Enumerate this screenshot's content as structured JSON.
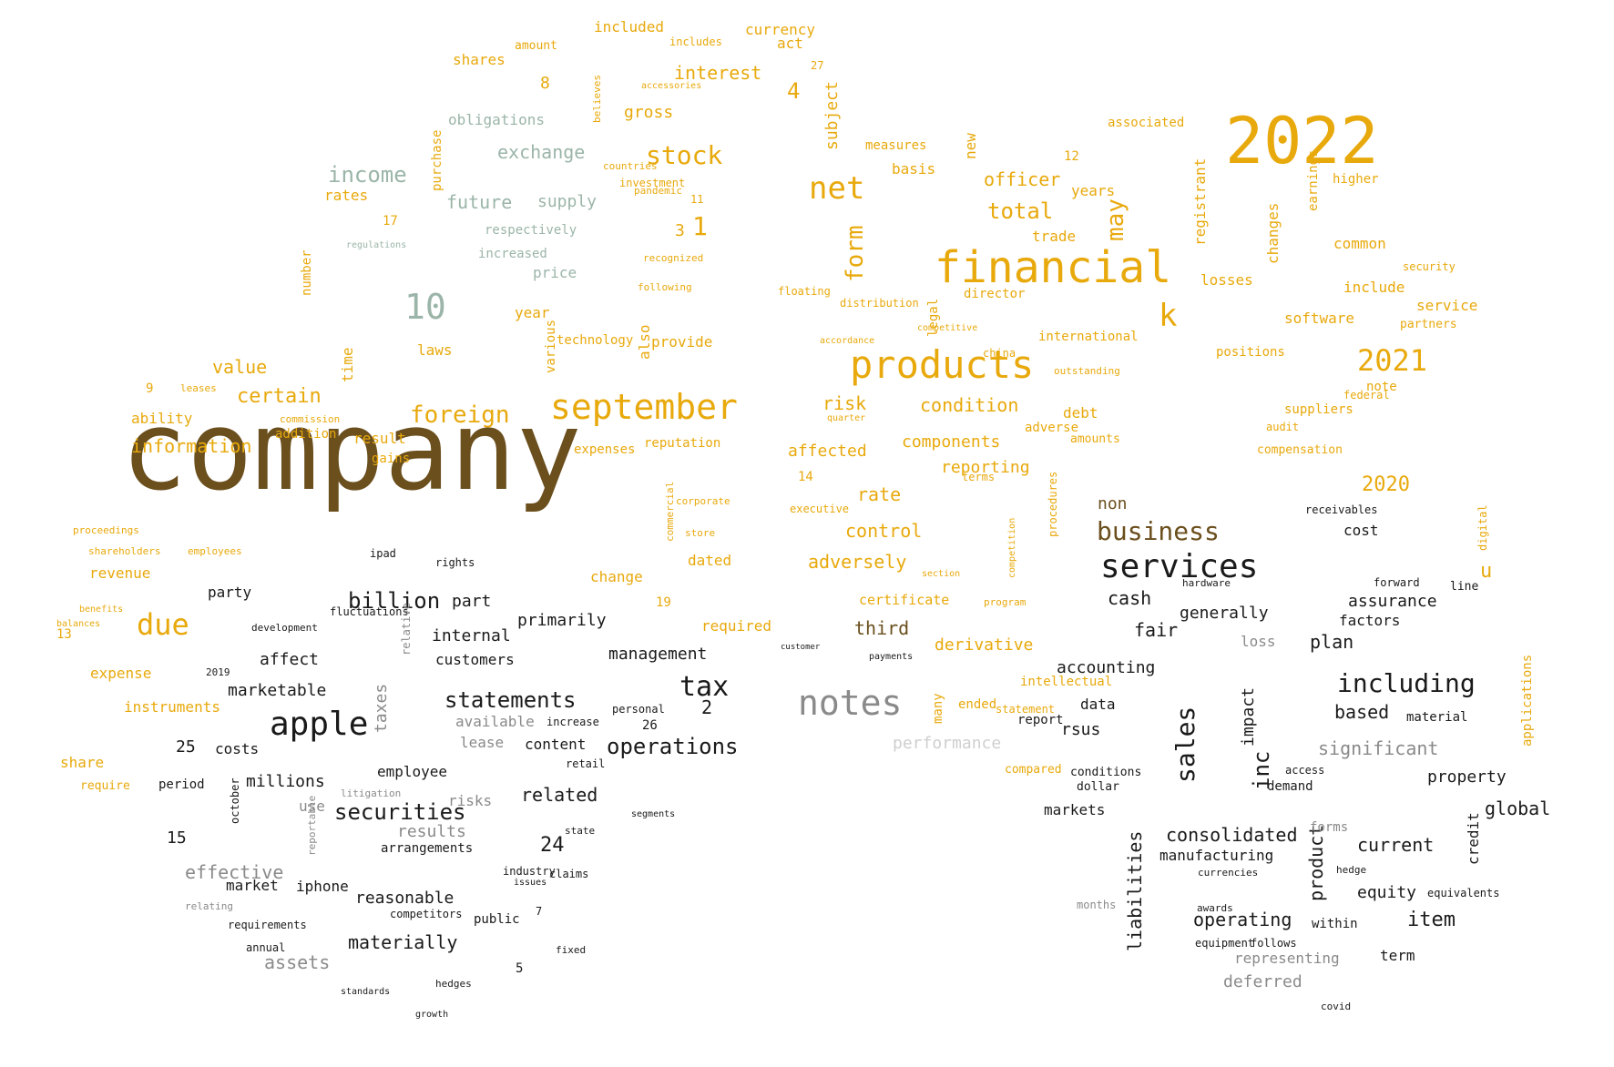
{
  "palette": {
    "brown": "#6b4f1d",
    "dark": "#1a1a1a",
    "gold": "#e8a90c",
    "sage": "#9bb5a8",
    "gray": "#8a8a8a",
    "lightgray": "#cfcfcf"
  },
  "words": [
    {
      "text": "company",
      "c": "brown"
    },
    {
      "text": "2022",
      "c": "gold"
    },
    {
      "text": "financial",
      "c": "gold"
    },
    {
      "text": "products",
      "c": "gold"
    },
    {
      "text": "september",
      "c": "gold"
    },
    {
      "text": "services",
      "c": "dark"
    },
    {
      "text": "notes",
      "c": "gray"
    },
    {
      "text": "apple",
      "c": "dark"
    },
    {
      "text": "net",
      "c": "gold"
    },
    {
      "text": "stock",
      "c": "gold"
    },
    {
      "text": "10",
      "c": "sage"
    },
    {
      "text": "2021",
      "c": "gold"
    },
    {
      "text": "business",
      "c": "brown"
    },
    {
      "text": "due",
      "c": "gold"
    },
    {
      "text": "income",
      "c": "sage"
    },
    {
      "text": "foreign",
      "c": "gold"
    },
    {
      "text": "sales",
      "c": "dark"
    },
    {
      "text": "tax",
      "c": "dark"
    },
    {
      "text": "including",
      "c": "dark"
    },
    {
      "text": "k",
      "c": "gold"
    },
    {
      "text": "form",
      "c": "gold"
    },
    {
      "text": "may",
      "c": "gold"
    },
    {
      "text": "total",
      "c": "gold"
    },
    {
      "text": "officer",
      "c": "gold"
    },
    {
      "text": "statements",
      "c": "dark"
    },
    {
      "text": "operations",
      "c": "dark"
    },
    {
      "text": "securities",
      "c": "dark"
    },
    {
      "text": "billion",
      "c": "dark"
    },
    {
      "text": "exchange",
      "c": "sage"
    },
    {
      "text": "interest",
      "c": "gold"
    },
    {
      "text": "future",
      "c": "sage"
    },
    {
      "text": "certain",
      "c": "gold"
    },
    {
      "text": "information",
      "c": "gold"
    },
    {
      "text": "value",
      "c": "gold"
    },
    {
      "text": "risk",
      "c": "gold"
    },
    {
      "text": "condition",
      "c": "gold"
    },
    {
      "text": "components",
      "c": "gold"
    },
    {
      "text": "rate",
      "c": "gold"
    },
    {
      "text": "control",
      "c": "gold"
    },
    {
      "text": "adversely",
      "c": "gold"
    },
    {
      "text": "affected",
      "c": "gold"
    },
    {
      "text": "reporting",
      "c": "gold"
    },
    {
      "text": "2020",
      "c": "gold"
    },
    {
      "text": "inc",
      "c": "dark"
    },
    {
      "text": "cash",
      "c": "dark"
    },
    {
      "text": "consolidated",
      "c": "dark"
    },
    {
      "text": "operating",
      "c": "dark"
    },
    {
      "text": "item",
      "c": "dark"
    },
    {
      "text": "current",
      "c": "dark"
    },
    {
      "text": "significant",
      "c": "gray"
    },
    {
      "text": "performance",
      "c": "lightgray"
    },
    {
      "text": "derivative",
      "c": "gold"
    },
    {
      "text": "third",
      "c": "brown"
    },
    {
      "text": "accounting",
      "c": "dark"
    },
    {
      "text": "manufacturing",
      "c": "dark"
    },
    {
      "text": "liabilities",
      "c": "dark"
    },
    {
      "text": "product",
      "c": "dark"
    },
    {
      "text": "global",
      "c": "dark"
    },
    {
      "text": "property",
      "c": "dark"
    },
    {
      "text": "materially",
      "c": "dark"
    },
    {
      "text": "assets",
      "c": "gray"
    },
    {
      "text": "effective",
      "c": "gray"
    },
    {
      "text": "reasonable",
      "c": "dark"
    },
    {
      "text": "management",
      "c": "dark"
    },
    {
      "text": "customers",
      "c": "dark"
    },
    {
      "text": "internal",
      "c": "dark"
    },
    {
      "text": "primarily",
      "c": "dark"
    },
    {
      "text": "marketable",
      "c": "dark"
    },
    {
      "text": "millions",
      "c": "dark"
    },
    {
      "text": "related",
      "c": "dark"
    },
    {
      "text": "risks",
      "c": "gray"
    },
    {
      "text": "results",
      "c": "gray"
    },
    {
      "text": "content",
      "c": "dark"
    },
    {
      "text": "employee",
      "c": "dark"
    },
    {
      "text": "24",
      "c": "dark"
    },
    {
      "text": "market",
      "c": "dark"
    },
    {
      "text": "iphone",
      "c": "dark"
    },
    {
      "text": "rsus",
      "c": "dark"
    },
    {
      "text": "data",
      "c": "dark"
    },
    {
      "text": "based",
      "c": "dark"
    },
    {
      "text": "plan",
      "c": "dark"
    },
    {
      "text": "fair",
      "c": "dark"
    },
    {
      "text": "generally",
      "c": "dark"
    },
    {
      "text": "assurance",
      "c": "dark"
    },
    {
      "text": "cost",
      "c": "dark"
    },
    {
      "text": "equity",
      "c": "dark"
    },
    {
      "text": "term",
      "c": "dark"
    },
    {
      "text": "deferred",
      "c": "gray"
    },
    {
      "text": "representing",
      "c": "gray"
    },
    {
      "text": "impact",
      "c": "dark"
    },
    {
      "text": "credit",
      "c": "dark"
    },
    {
      "text": "taxes",
      "c": "gray"
    },
    {
      "text": "supply",
      "c": "sage"
    },
    {
      "text": "obligations",
      "c": "sage"
    },
    {
      "text": "gross",
      "c": "gold"
    },
    {
      "text": "shares",
      "c": "gold"
    },
    {
      "text": "included",
      "c": "gold"
    },
    {
      "text": "currency",
      "c": "gold"
    },
    {
      "text": "subject",
      "c": "gold"
    },
    {
      "text": "basis",
      "c": "gold"
    },
    {
      "text": "years",
      "c": "gold"
    },
    {
      "text": "trade",
      "c": "gold"
    },
    {
      "text": "losses",
      "c": "gold"
    },
    {
      "text": "include",
      "c": "gold"
    },
    {
      "text": "service",
      "c": "gold"
    },
    {
      "text": "software",
      "c": "gold"
    },
    {
      "text": "common",
      "c": "gold"
    },
    {
      "text": "registrant",
      "c": "gold"
    },
    {
      "text": "changes",
      "c": "gold"
    },
    {
      "text": "director",
      "c": "gold"
    },
    {
      "text": "laws",
      "c": "gold"
    },
    {
      "text": "provide",
      "c": "gold"
    },
    {
      "text": "also",
      "c": "gold"
    },
    {
      "text": "time",
      "c": "gold"
    },
    {
      "text": "rates",
      "c": "gold"
    },
    {
      "text": "price",
      "c": "sage"
    },
    {
      "text": "year",
      "c": "gold"
    },
    {
      "text": "increased",
      "c": "sage"
    },
    {
      "text": "respectively",
      "c": "sage"
    },
    {
      "text": "result",
      "c": "gold"
    },
    {
      "text": "ability",
      "c": "gold"
    },
    {
      "text": "revenue",
      "c": "gold"
    },
    {
      "text": "expense",
      "c": "gold"
    },
    {
      "text": "instruments",
      "c": "gold"
    },
    {
      "text": "share",
      "c": "gold"
    },
    {
      "text": "change",
      "c": "gold"
    },
    {
      "text": "dated",
      "c": "gold"
    },
    {
      "text": "required",
      "c": "gold"
    },
    {
      "text": "certificate",
      "c": "gold"
    },
    {
      "text": "debt",
      "c": "gold"
    },
    {
      "text": "suppliers",
      "c": "gold"
    },
    {
      "text": "intellectual",
      "c": "gold"
    },
    {
      "text": "non",
      "c": "brown"
    },
    {
      "text": "many",
      "c": "gold"
    },
    {
      "text": "affect",
      "c": "dark"
    },
    {
      "text": "part",
      "c": "dark"
    },
    {
      "text": "party",
      "c": "dark"
    },
    {
      "text": "costs",
      "c": "dark"
    },
    {
      "text": "25",
      "c": "dark"
    },
    {
      "text": "2",
      "c": "dark"
    },
    {
      "text": "26",
      "c": "dark"
    },
    {
      "text": "15",
      "c": "dark"
    },
    {
      "text": "loss",
      "c": "gray"
    },
    {
      "text": "factors",
      "c": "dark"
    },
    {
      "text": "markets",
      "c": "dark"
    },
    {
      "text": "u",
      "c": "gold"
    },
    {
      "text": "1",
      "c": "gold"
    },
    {
      "text": "3",
      "c": "gold"
    },
    {
      "text": "4",
      "c": "gold"
    },
    {
      "text": "8",
      "c": "gold"
    },
    {
      "text": "new",
      "c": "gold"
    },
    {
      "text": "legal",
      "c": "gold"
    },
    {
      "text": "addition",
      "c": "gold"
    },
    {
      "text": "expenses",
      "c": "gold"
    },
    {
      "text": "reputation",
      "c": "gold"
    },
    {
      "text": "technology",
      "c": "gold"
    },
    {
      "text": "gains",
      "c": "gold"
    },
    {
      "text": "12",
      "c": "gold"
    },
    {
      "text": "14",
      "c": "gold"
    },
    {
      "text": "19",
      "c": "gold"
    },
    {
      "text": "9",
      "c": "gold"
    },
    {
      "text": "13",
      "c": "gold"
    },
    {
      "text": "purchase",
      "c": "gold"
    },
    {
      "text": "number",
      "c": "gold"
    },
    {
      "text": "international",
      "c": "gold"
    },
    {
      "text": "earnings",
      "c": "gold"
    },
    {
      "text": "higher",
      "c": "gold"
    },
    {
      "text": "partners",
      "c": "gold"
    },
    {
      "text": "positions",
      "c": "gold"
    },
    {
      "text": "compensation",
      "c": "gold"
    },
    {
      "text": "note",
      "c": "gold"
    },
    {
      "text": "associated",
      "c": "gold"
    },
    {
      "text": "measures",
      "c": "gold"
    },
    {
      "text": "act",
      "c": "gold"
    },
    {
      "text": "adverse",
      "c": "gold"
    },
    {
      "text": "amounts",
      "c": "gold"
    },
    {
      "text": "executive",
      "c": "gold"
    },
    {
      "text": "terms",
      "c": "gold"
    },
    {
      "text": "floating",
      "c": "gold"
    },
    {
      "text": "distribution",
      "c": "gold"
    },
    {
      "text": "security",
      "c": "gold"
    },
    {
      "text": "audit",
      "c": "gold"
    },
    {
      "text": "federal",
      "c": "gold"
    },
    {
      "text": "ended",
      "c": "gold"
    },
    {
      "text": "report",
      "c": "dark"
    },
    {
      "text": "conditions",
      "c": "dark"
    },
    {
      "text": "dollar",
      "c": "dark"
    },
    {
      "text": "compared",
      "c": "gold"
    },
    {
      "text": "statement",
      "c": "gold"
    },
    {
      "text": "receivables",
      "c": "dark"
    },
    {
      "text": "hardware",
      "c": "dark"
    },
    {
      "text": "line",
      "c": "dark"
    },
    {
      "text": "forward",
      "c": "dark"
    },
    {
      "text": "demand",
      "c": "dark"
    },
    {
      "text": "access",
      "c": "dark"
    },
    {
      "text": "material",
      "c": "dark"
    },
    {
      "text": "forms",
      "c": "gray"
    },
    {
      "text": "within",
      "c": "dark"
    },
    {
      "text": "hedge",
      "c": "dark"
    },
    {
      "text": "equivalents",
      "c": "dark"
    },
    {
      "text": "equipment",
      "c": "dark"
    },
    {
      "text": "follows",
      "c": "dark"
    },
    {
      "text": "covid",
      "c": "dark"
    },
    {
      "text": "currencies",
      "c": "dark"
    },
    {
      "text": "months",
      "c": "gray"
    },
    {
      "text": "awards",
      "c": "dark"
    },
    {
      "text": "arrangements",
      "c": "dark"
    },
    {
      "text": "public",
      "c": "dark"
    },
    {
      "text": "competitors",
      "c": "dark"
    },
    {
      "text": "requirements",
      "c": "dark"
    },
    {
      "text": "annual",
      "c": "dark"
    },
    {
      "text": "period",
      "c": "dark"
    },
    {
      "text": "use",
      "c": "gray"
    },
    {
      "text": "lease",
      "c": "gray"
    },
    {
      "text": "available",
      "c": "gray"
    },
    {
      "text": "retail",
      "c": "dark"
    },
    {
      "text": "increase",
      "c": "dark"
    },
    {
      "text": "personal",
      "c": "dark"
    },
    {
      "text": "rights",
      "c": "dark"
    },
    {
      "text": "ipad",
      "c": "dark"
    },
    {
      "text": "fluctuations",
      "c": "dark"
    },
    {
      "text": "development",
      "c": "dark"
    },
    {
      "text": "claims",
      "c": "dark"
    },
    {
      "text": "industry",
      "c": "dark"
    },
    {
      "text": "issues",
      "c": "dark"
    },
    {
      "text": "fixed",
      "c": "dark"
    },
    {
      "text": "state",
      "c": "dark"
    },
    {
      "text": "segments",
      "c": "dark"
    },
    {
      "text": "hedges",
      "c": "dark"
    },
    {
      "text": "standards",
      "c": "dark"
    },
    {
      "text": "growth",
      "c": "dark"
    },
    {
      "text": "relating",
      "c": "gray"
    },
    {
      "text": "october",
      "c": "dark"
    },
    {
      "text": "reportable",
      "c": "gray"
    },
    {
      "text": "relative",
      "c": "gray"
    },
    {
      "text": "litigation",
      "c": "gray"
    },
    {
      "text": "5",
      "c": "dark"
    },
    {
      "text": "7",
      "c": "dark"
    },
    {
      "text": "2019",
      "c": "dark"
    },
    {
      "text": "various",
      "c": "gold"
    },
    {
      "text": "investment",
      "c": "gold"
    },
    {
      "text": "pandemic",
      "c": "gold"
    },
    {
      "text": "countries",
      "c": "gold"
    },
    {
      "text": "recognized",
      "c": "gold"
    },
    {
      "text": "following",
      "c": "gold"
    },
    {
      "text": "commercial",
      "c": "gold"
    },
    {
      "text": "leases",
      "c": "gold"
    },
    {
      "text": "commission",
      "c": "gold"
    },
    {
      "text": "proceedings",
      "c": "gold"
    },
    {
      "text": "shareholders",
      "c": "gold"
    },
    {
      "text": "employees",
      "c": "gold"
    },
    {
      "text": "benefits",
      "c": "gold"
    },
    {
      "text": "balances",
      "c": "gold"
    },
    {
      "text": "17",
      "c": "gold"
    },
    {
      "text": "11",
      "c": "gold"
    },
    {
      "text": "27",
      "c": "gold"
    },
    {
      "text": "amount",
      "c": "gold"
    },
    {
      "text": "includes",
      "c": "gold"
    },
    {
      "text": "accessories",
      "c": "gold"
    },
    {
      "text": "believes",
      "c": "gold"
    },
    {
      "text": "regulations",
      "c": "sage"
    },
    {
      "text": "china",
      "c": "gold"
    },
    {
      "text": "quarter",
      "c": "gold"
    },
    {
      "text": "accordance",
      "c": "gold"
    },
    {
      "text": "competitive",
      "c": "gold"
    },
    {
      "text": "outstanding",
      "c": "gold"
    },
    {
      "text": "program",
      "c": "gold"
    },
    {
      "text": "competition",
      "c": "gold"
    },
    {
      "text": "procedures",
      "c": "gold"
    },
    {
      "text": "section",
      "c": "gold"
    },
    {
      "text": "payments",
      "c": "dark"
    },
    {
      "text": "customer",
      "c": "dark"
    },
    {
      "text": "applications",
      "c": "gold"
    },
    {
      "text": "digital",
      "c": "gold"
    },
    {
      "text": "store",
      "c": "gold"
    },
    {
      "text": "corporate",
      "c": "gold"
    },
    {
      "text": "require",
      "c": "gold"
    }
  ]
}
